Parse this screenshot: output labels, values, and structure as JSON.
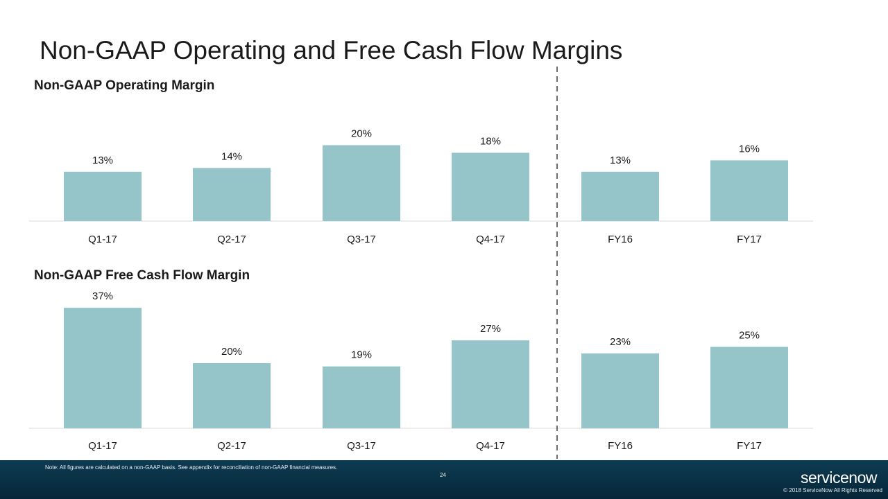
{
  "slide": {
    "title": "Non-GAAP Operating and Free Cash Flow Margins",
    "page_number": "24",
    "note": "Note: All figures are calculated on a non-GAAP basis. See appendix for reconciliation of non-GAAP financial measures.",
    "logo_text": "servicenow",
    "copyright": "© 2018 ServiceNow All Rights Reserved"
  },
  "colors": {
    "bar": "#95c5c8",
    "divider": "#6b6b6b",
    "footer": "#0c3448"
  },
  "chart_data": [
    {
      "type": "bar",
      "title": "Non-GAAP Operating Margin",
      "categories": [
        "Q1-17",
        "Q2-17",
        "Q3-17",
        "Q4-17",
        "FY16",
        "FY17"
      ],
      "values": [
        13,
        14,
        20,
        18,
        13,
        16
      ],
      "value_labels": [
        "13%",
        "14%",
        "20%",
        "18%",
        "13%",
        "16%"
      ],
      "unit": "%",
      "ylim": [
        0,
        21
      ],
      "grid": false
    },
    {
      "type": "bar",
      "title": "Non-GAAP Free Cash Flow Margin",
      "categories": [
        "Q1-17",
        "Q2-17",
        "Q3-17",
        "Q4-17",
        "FY16",
        "FY17"
      ],
      "values": [
        37,
        20,
        19,
        27,
        23,
        25
      ],
      "value_labels": [
        "37%",
        "20%",
        "19%",
        "27%",
        "23%",
        "25%"
      ],
      "unit": "%",
      "ylim": [
        0,
        40
      ],
      "grid": false
    }
  ]
}
